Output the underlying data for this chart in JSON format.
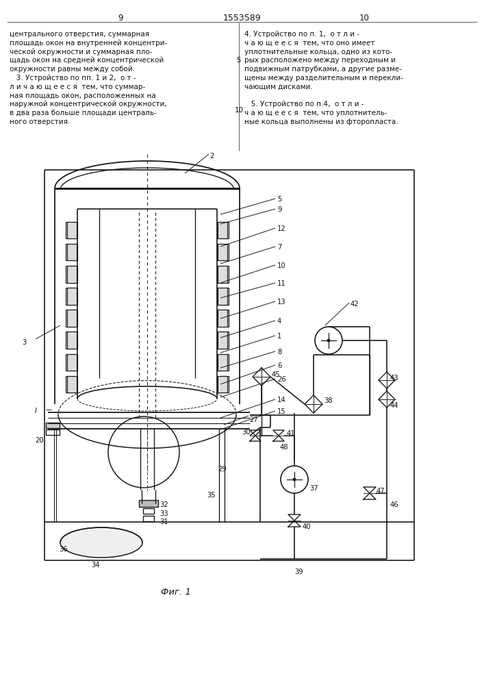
{
  "page_numbers": [
    "9",
    "10"
  ],
  "patent_number": "1553589",
  "fig_caption": "Фиг. 1",
  "background_color": "#ffffff",
  "line_color": "#1a1a1a",
  "text_color": "#111111",
  "left_text": [
    "центрального отверстия, суммарная",
    "площадь окон на внутренней концентри-",
    "ческой окружности и суммарная пло-",
    "щадь окон на средней концентрической",
    "окружности равны между собой.",
    "   3. Устройство по пп. 1 и 2,  о т -",
    "л и ч а ю щ е е с я  тем, что суммар-",
    "ная площадь окон, расположенных на",
    "наружной концентрической окружности,",
    "в два раза больше площади централь-",
    "ного отверстия."
  ],
  "right_text": [
    "4. Устройство по п. 1,  о т л и -",
    "ч а ю щ е е с я  тем, что оно имеет",
    "уплотнительные кольца, одно из кото-",
    "рых расположено между переходным и",
    "подвижным патрубками, а другие разме-",
    "щены между разделительным и перекли-",
    "чающим дисками.",
    "",
    "   5. Устройство по п.4,  о т л и -",
    "ч а ю щ е е с я  тем, что уплотнитель-",
    "ные кольца выполнены из фторопласта."
  ]
}
